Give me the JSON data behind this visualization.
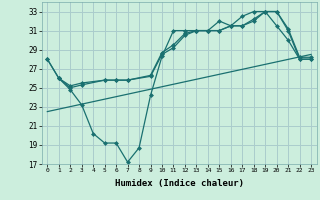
{
  "xlabel": "Humidex (Indice chaleur)",
  "bg_color": "#cceedd",
  "grid_color": "#aacccc",
  "line_color": "#1a7070",
  "xlim": [
    -0.5,
    23.5
  ],
  "ylim": [
    17,
    34
  ],
  "yticks": [
    17,
    19,
    21,
    23,
    25,
    27,
    29,
    31,
    33
  ],
  "xticks": [
    0,
    1,
    2,
    3,
    4,
    5,
    6,
    7,
    8,
    9,
    10,
    11,
    12,
    13,
    14,
    15,
    16,
    17,
    18,
    19,
    20,
    21,
    22,
    23
  ],
  "line1_x": [
    0,
    1,
    2,
    3,
    4,
    5,
    6,
    7,
    8,
    9,
    10,
    11,
    12,
    13,
    14,
    15,
    16,
    17,
    18,
    19,
    20,
    21,
    22,
    23
  ],
  "line1_y": [
    28,
    26,
    24.8,
    23.2,
    20.2,
    19.2,
    19.2,
    17.2,
    18.7,
    24.2,
    28.3,
    31,
    31,
    31,
    31,
    32,
    31.5,
    32.5,
    33,
    33,
    31.5,
    30,
    28,
    28
  ],
  "line2_x": [
    0,
    1,
    2,
    3,
    5,
    6,
    7,
    9,
    10,
    11,
    12,
    13,
    14,
    15,
    16,
    17,
    18,
    19,
    20,
    21,
    22,
    23
  ],
  "line2_y": [
    28,
    26,
    25.2,
    25.5,
    25.8,
    25.8,
    25.8,
    26.3,
    28.7,
    29.5,
    30.7,
    31,
    31,
    31,
    31.5,
    31.5,
    32.2,
    33,
    33,
    31.2,
    28.2,
    28.2
  ],
  "line3_x": [
    1,
    2,
    3,
    5,
    6,
    7,
    9,
    10,
    11,
    12,
    13,
    14,
    15,
    16,
    17,
    18,
    19,
    20,
    21,
    22,
    23
  ],
  "line3_y": [
    26,
    25,
    25.3,
    25.8,
    25.8,
    25.8,
    26.2,
    28.5,
    29.2,
    30.5,
    31,
    31,
    31,
    31.5,
    31.5,
    32,
    33,
    33,
    31,
    28,
    28
  ],
  "trend_x": [
    0,
    23
  ],
  "trend_y": [
    22.5,
    28.5
  ]
}
